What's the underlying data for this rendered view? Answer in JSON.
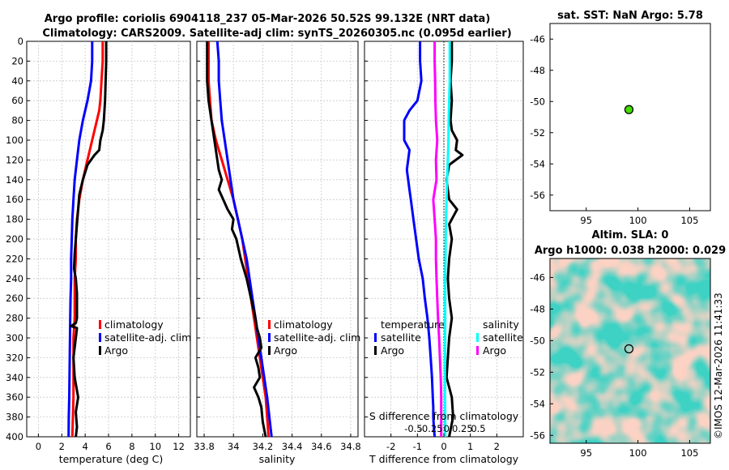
{
  "header": {
    "title_line1": "Argo profile: coriolis 6904118_237 05-Mar-2026 50.52S 99.132E (NRT data)",
    "title_line2": "Climatology: CARS2009. Satellite-adj clim: synTS_20260305.nc (0.095d earlier)"
  },
  "sst_panel": {
    "title": "sat. SST: NaN Argo: 5.78"
  },
  "sla_panel": {
    "title_line1": "Altim. SLA: 0",
    "title_line2": "Argo h1000: 0.038 h2000: 0.029"
  },
  "credit": "©IMOS 12-Mar-2026 11:41:33",
  "legend": {
    "climatology": "climatology",
    "satellite_adj": "satellite-adj. clim",
    "argo": "Argo",
    "temperature": "temperature",
    "salinity": "salinity",
    "satellite": "satellite"
  },
  "colors": {
    "red": "#ff0000",
    "blue": "#0000ff",
    "black": "#000000",
    "cyan": "#00ffff",
    "magenta": "#ff00ff",
    "green_marker": "#44dd00"
  },
  "chart_data": [
    {
      "type": "line",
      "name": "temperature-profile",
      "xlabel": "temperature (deg C)",
      "xlim": [
        -1,
        13
      ],
      "ylim": [
        0,
        400
      ],
      "yreversed": true,
      "xticks": [
        "0",
        "2",
        "4",
        "6",
        "8",
        "10",
        "12"
      ],
      "xtick_values": [
        0,
        2,
        4,
        6,
        8,
        10,
        12
      ],
      "yticks": [
        "0",
        "20",
        "40",
        "60",
        "80",
        "100",
        "120",
        "140",
        "160",
        "180",
        "200",
        "220",
        "240",
        "260",
        "280",
        "300",
        "320",
        "340",
        "360",
        "380",
        "400"
      ],
      "grid": true,
      "legend_position": "lower-right",
      "series": [
        {
          "name": "climatology",
          "color": "#ff0000",
          "x": [
            5.5,
            5.5,
            5.4,
            5.3,
            5.2,
            5.0,
            4.6,
            4.2,
            3.8,
            3.5,
            3.3,
            3.2,
            3.2,
            3.1,
            3.1,
            3.1,
            3.0,
            3.0,
            3.0,
            3.0,
            2.9
          ],
          "depth": [
            0,
            20,
            40,
            60,
            70,
            80,
            100,
            120,
            140,
            160,
            180,
            200,
            220,
            240,
            260,
            280,
            300,
            320,
            340,
            360,
            400
          ]
        },
        {
          "name": "satellite-adj. clim",
          "color": "#0000ff",
          "x": [
            4.6,
            4.6,
            4.5,
            4.2,
            3.8,
            3.5,
            3.3,
            3.1,
            3.0,
            2.9,
            2.85,
            2.8,
            2.8,
            2.75,
            2.72,
            2.7,
            2.68,
            2.66,
            2.64,
            2.62,
            2.6,
            2.58
          ],
          "depth": [
            0,
            20,
            40,
            60,
            80,
            100,
            120,
            140,
            160,
            180,
            200,
            220,
            240,
            260,
            280,
            300,
            320,
            340,
            360,
            370,
            380,
            400
          ]
        },
        {
          "name": "Argo",
          "color": "#000000",
          "x": [
            5.8,
            5.8,
            5.75,
            5.7,
            5.6,
            5.5,
            5.3,
            5.2,
            4.8,
            4.2,
            3.8,
            3.5,
            3.4,
            3.3,
            3.2,
            3.1,
            3.05,
            3.2,
            3.3,
            3.3,
            3.3,
            3.2,
            2.8,
            3.3,
            3.2,
            3.0,
            3.1,
            3.4,
            3.2,
            3.3,
            3.2
          ],
          "depth": [
            0,
            20,
            40,
            60,
            80,
            90,
            100,
            110,
            115,
            125,
            140,
            155,
            170,
            185,
            200,
            215,
            230,
            240,
            255,
            270,
            280,
            285,
            288,
            290,
            300,
            320,
            340,
            360,
            375,
            390,
            400
          ]
        }
      ]
    },
    {
      "type": "line",
      "name": "salinity-profile",
      "xlabel": "salinity",
      "xlim": [
        33.75,
        34.85
      ],
      "ylim": [
        0,
        400
      ],
      "yreversed": true,
      "xticks": [
        "33.8",
        "34",
        "34.2",
        "34.4",
        "34.6",
        "34.8"
      ],
      "xtick_values": [
        33.8,
        34.0,
        34.2,
        34.4,
        34.6,
        34.8
      ],
      "grid": true,
      "legend_position": "lower-right",
      "series": [
        {
          "name": "climatology",
          "color": "#ff0000",
          "x": [
            33.83,
            33.83,
            33.83,
            33.84,
            33.85,
            33.88,
            33.92,
            33.96,
            34.0,
            34.03,
            34.06,
            34.08,
            34.1,
            34.12,
            34.14,
            34.16,
            34.18,
            34.2,
            34.22,
            34.24
          ],
          "depth": [
            0,
            20,
            40,
            60,
            80,
            100,
            120,
            140,
            160,
            180,
            200,
            220,
            240,
            260,
            280,
            300,
            320,
            340,
            360,
            400
          ]
        },
        {
          "name": "satellite-adj. clim",
          "color": "#0000ff",
          "x": [
            33.89,
            33.9,
            33.9,
            33.91,
            33.92,
            33.94,
            33.96,
            33.98,
            34.0,
            34.03,
            34.06,
            34.09,
            34.11,
            34.13,
            34.15,
            34.17,
            34.19,
            34.21,
            34.23,
            34.26
          ],
          "depth": [
            0,
            20,
            40,
            60,
            80,
            100,
            120,
            140,
            160,
            180,
            200,
            220,
            240,
            260,
            280,
            300,
            320,
            340,
            360,
            400
          ]
        },
        {
          "name": "Argo",
          "color": "#000000",
          "x": [
            33.82,
            33.82,
            33.82,
            33.83,
            33.85,
            33.87,
            33.88,
            33.89,
            33.9,
            33.92,
            33.9,
            33.93,
            33.96,
            34.0,
            33.99,
            34.02,
            34.05,
            34.09,
            34.12,
            34.15,
            34.16,
            34.18,
            34.19,
            34.15,
            34.17,
            34.18,
            34.14,
            34.17,
            34.19,
            34.2,
            34.22
          ],
          "depth": [
            0,
            20,
            40,
            60,
            80,
            100,
            110,
            120,
            130,
            140,
            150,
            160,
            170,
            180,
            190,
            200,
            220,
            240,
            260,
            280,
            290,
            300,
            310,
            320,
            330,
            340,
            350,
            360,
            370,
            385,
            400
          ]
        }
      ]
    },
    {
      "type": "line",
      "name": "difference-profile",
      "xlabel": "T difference from climatology",
      "xlabel_top": "S difference from climatology",
      "xlim": [
        -3,
        3
      ],
      "ylim": [
        0,
        400
      ],
      "yreversed": true,
      "xticks": [
        "-2",
        "-1",
        "0",
        "1",
        "2"
      ],
      "xtick_values": [
        -2,
        -1,
        0,
        1,
        2
      ],
      "sticks": [
        "-0.5",
        "-0.25",
        "0",
        "0.25",
        "0.5"
      ],
      "stick_values": [
        -1.15,
        -0.5,
        0.1,
        0.7,
        1.3
      ],
      "grid": true,
      "legend_titles": [
        "temperature",
        "salinity"
      ],
      "series": [
        {
          "name": "temperature satellite",
          "color": "#0000ff",
          "x": [
            -0.9,
            -0.9,
            -0.85,
            -1.0,
            -1.3,
            -1.5,
            -1.5,
            -1.3,
            -1.4,
            -1.3,
            -1.25,
            -1.15,
            -1.05,
            -0.95,
            -0.8,
            -0.72,
            -0.62,
            -0.55,
            -0.5,
            -0.45,
            -0.42,
            -0.4,
            -0.4,
            -0.38,
            -0.35
          ],
          "depth": [
            0,
            20,
            40,
            60,
            70,
            80,
            100,
            110,
            130,
            150,
            160,
            180,
            200,
            220,
            240,
            260,
            280,
            300,
            320,
            340,
            360,
            370,
            380,
            390,
            400
          ]
        },
        {
          "name": "temperature Argo",
          "color": "#000000",
          "x": [
            0.3,
            0.3,
            0.25,
            0.3,
            0.25,
            0.3,
            0.5,
            0.45,
            0.7,
            0.2,
            0.1,
            0.2,
            0.5,
            0.2,
            0.3,
            0.2,
            0.15,
            0.2,
            0.3,
            0.2,
            0.15,
            0.1,
            0.3,
            0.35,
            0.2
          ],
          "depth": [
            0,
            20,
            40,
            60,
            80,
            90,
            100,
            110,
            115,
            125,
            140,
            160,
            170,
            185,
            200,
            220,
            240,
            260,
            280,
            300,
            320,
            340,
            360,
            380,
            400
          ]
        },
        {
          "name": "salinity satellite",
          "color": "#00ffff",
          "x": [
            0.22,
            0.22,
            0.22,
            0.2,
            0.18,
            0.17,
            0.15,
            0.12,
            0.1,
            0.08,
            0.07,
            0.06,
            0.05,
            0.05,
            0.05,
            0.05,
            0.04,
            0.04,
            0.04,
            0.05,
            0.05
          ],
          "depth": [
            0,
            20,
            40,
            60,
            80,
            100,
            120,
            140,
            160,
            180,
            200,
            220,
            240,
            260,
            280,
            300,
            320,
            340,
            360,
            380,
            400
          ]
        },
        {
          "name": "salinity Argo",
          "color": "#ff00ff",
          "x": [
            -0.35,
            -0.35,
            -0.33,
            -0.32,
            -0.3,
            -0.25,
            -0.3,
            -0.28,
            -0.4,
            -0.35,
            -0.3,
            -0.3,
            -0.28,
            -0.25,
            -0.22,
            -0.18,
            -0.15,
            -0.12,
            -0.1,
            -0.1,
            -0.1,
            -0.1
          ],
          "depth": [
            0,
            20,
            40,
            60,
            80,
            100,
            120,
            140,
            160,
            180,
            200,
            220,
            240,
            260,
            280,
            300,
            320,
            340,
            360,
            370,
            385,
            400
          ]
        }
      ]
    },
    {
      "type": "scatter",
      "name": "sst-map",
      "title": "sat. SST: NaN Argo: 5.78",
      "xlim": [
        91.5,
        107
      ],
      "ylim": [
        -57,
        -45
      ],
      "xticks": [
        "95",
        "100",
        "105"
      ],
      "xtick_values": [
        95,
        100,
        105
      ],
      "yticks": [
        "-46",
        "-48",
        "-50",
        "-52",
        "-54",
        "-56"
      ],
      "ytick_values": [
        -46,
        -48,
        -50,
        -52,
        -54,
        -56
      ],
      "points": [
        {
          "name": "Argo float",
          "lon": 99.13,
          "lat": -50.52,
          "color": "#44dd00"
        }
      ]
    },
    {
      "type": "heatmap",
      "name": "sla-map",
      "title": "Altim. SLA: 0",
      "xlim": [
        91.5,
        107
      ],
      "ylim": [
        -56.5,
        -44.8
      ],
      "xticks": [
        "95",
        "100",
        "105"
      ],
      "xtick_values": [
        95,
        100,
        105
      ],
      "yticks": [
        "-46",
        "-48",
        "-50",
        "-52",
        "-54",
        "-56"
      ],
      "ytick_values": [
        -46,
        -48,
        -50,
        -52,
        -54,
        -56
      ],
      "points": [
        {
          "name": "Argo float",
          "lon": 99.13,
          "lat": -50.52
        }
      ]
    }
  ]
}
